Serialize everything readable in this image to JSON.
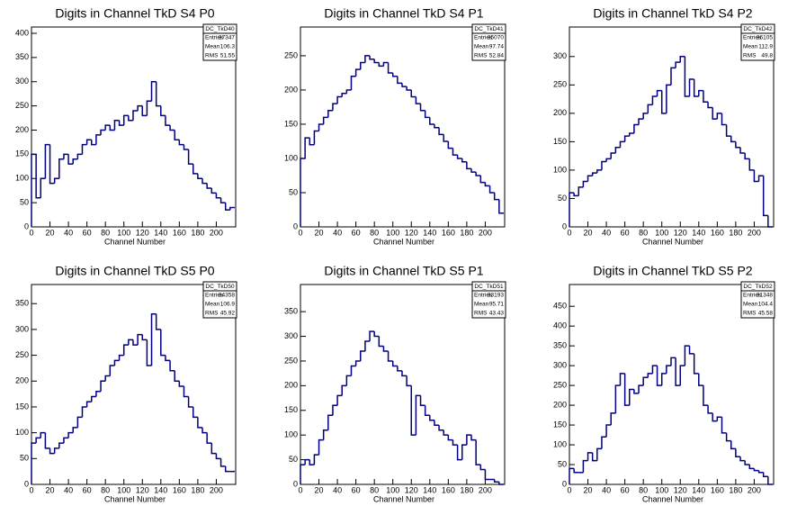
{
  "chart_data": [
    {
      "type": "histogram",
      "title": "Digits in Channel TkD S4 P0",
      "x_label": "Channel Number",
      "color": "#000080",
      "stats": {
        "name": "DC_TkD40",
        "rows": [
          {
            "label": "Entries",
            "value": 37347
          },
          {
            "label": "Mean",
            "value": 106.3
          },
          {
            "label": "RMS",
            "value": 51.55
          }
        ]
      },
      "bins": [
        0,
        5,
        10,
        15,
        20,
        25,
        30,
        35,
        40,
        45,
        50,
        55,
        60,
        65,
        70,
        75,
        80,
        85,
        90,
        95,
        100,
        105,
        110,
        115,
        120,
        125,
        130,
        135,
        140,
        145,
        150,
        155,
        160,
        165,
        170,
        175,
        180,
        185,
        190,
        195,
        200,
        205,
        210,
        215,
        220
      ],
      "values": [
        150,
        60,
        100,
        170,
        90,
        100,
        140,
        150,
        130,
        140,
        150,
        170,
        180,
        170,
        190,
        200,
        210,
        200,
        220,
        210,
        230,
        220,
        240,
        250,
        230,
        260,
        300,
        250,
        230,
        210,
        200,
        180,
        170,
        160,
        130,
        110,
        100,
        90,
        80,
        70,
        60,
        50,
        35,
        40
      ],
      "xlim": [
        0,
        221
      ],
      "ylim": [
        0,
        413
      ],
      "xticks": [
        0,
        20,
        40,
        60,
        80,
        100,
        120,
        140,
        160,
        180,
        200
      ],
      "yticks": [
        0,
        50,
        100,
        150,
        200,
        250,
        300,
        350,
        400
      ]
    },
    {
      "type": "histogram",
      "title": "Digits in Channel TkD S4 P1",
      "x_label": "Channel Number",
      "color": "#000080",
      "stats": {
        "name": "DC_TkD41",
        "rows": [
          {
            "label": "Entries",
            "value": 35070
          },
          {
            "label": "Mean",
            "value": 97.74
          },
          {
            "label": "RMS",
            "value": 52.84
          }
        ]
      },
      "bins": [
        0,
        5,
        10,
        15,
        20,
        25,
        30,
        35,
        40,
        45,
        50,
        55,
        60,
        65,
        70,
        75,
        80,
        85,
        90,
        95,
        100,
        105,
        110,
        115,
        120,
        125,
        130,
        135,
        140,
        145,
        150,
        155,
        160,
        165,
        170,
        175,
        180,
        185,
        190,
        195,
        200,
        205,
        210,
        215,
        220
      ],
      "values": [
        100,
        130,
        120,
        140,
        150,
        160,
        170,
        180,
        190,
        195,
        200,
        220,
        230,
        240,
        250,
        245,
        240,
        235,
        240,
        225,
        220,
        210,
        205,
        200,
        190,
        180,
        170,
        160,
        150,
        145,
        135,
        125,
        115,
        105,
        100,
        95,
        85,
        80,
        75,
        65,
        60,
        50,
        40,
        20
      ],
      "xlim": [
        0,
        221
      ],
      "ylim": [
        0,
        292
      ],
      "xticks": [
        0,
        20,
        40,
        60,
        80,
        100,
        120,
        140,
        160,
        180,
        200
      ],
      "yticks": [
        0,
        50,
        100,
        150,
        200,
        250
      ]
    },
    {
      "type": "histogram",
      "title": "Digits in Channel TkD S4 P2",
      "x_label": "Channel Number",
      "color": "#000080",
      "stats": {
        "name": "DC_TkD42",
        "rows": [
          {
            "label": "Entries",
            "value": 36105
          },
          {
            "label": "Mean",
            "value": 112.9
          },
          {
            "label": "RMS",
            "value": 49.8
          }
        ]
      },
      "bins": [
        0,
        5,
        10,
        15,
        20,
        25,
        30,
        35,
        40,
        45,
        50,
        55,
        60,
        65,
        70,
        75,
        80,
        85,
        90,
        95,
        100,
        105,
        110,
        115,
        120,
        125,
        130,
        135,
        140,
        145,
        150,
        155,
        160,
        165,
        170,
        175,
        180,
        185,
        190,
        195,
        200,
        205,
        210,
        215,
        220
      ],
      "values": [
        60,
        55,
        70,
        80,
        90,
        95,
        100,
        115,
        120,
        130,
        140,
        150,
        160,
        165,
        180,
        190,
        200,
        215,
        230,
        240,
        200,
        250,
        280,
        290,
        300,
        230,
        260,
        230,
        240,
        220,
        210,
        190,
        200,
        180,
        160,
        150,
        140,
        130,
        120,
        100,
        80,
        90,
        20,
        0
      ],
      "xlim": [
        0,
        221
      ],
      "ylim": [
        0,
        352
      ],
      "xticks": [
        0,
        20,
        40,
        60,
        80,
        100,
        120,
        140,
        160,
        180,
        200
      ],
      "yticks": [
        0,
        50,
        100,
        150,
        200,
        250,
        300
      ]
    },
    {
      "type": "histogram",
      "title": "Digits in Channel TkD S5 P0",
      "x_label": "Channel Number",
      "color": "#000080",
      "stats": {
        "name": "DC_TkD50",
        "rows": [
          {
            "label": "Entries",
            "value": 34358
          },
          {
            "label": "Mean",
            "value": 106.9
          },
          {
            "label": "RMS",
            "value": 45.92
          }
        ]
      },
      "bins": [
        0,
        5,
        10,
        15,
        20,
        25,
        30,
        35,
        40,
        45,
        50,
        55,
        60,
        65,
        70,
        75,
        80,
        85,
        90,
        95,
        100,
        105,
        110,
        115,
        120,
        125,
        130,
        135,
        140,
        145,
        150,
        155,
        160,
        165,
        170,
        175,
        180,
        185,
        190,
        195,
        200,
        205,
        210,
        215,
        220
      ],
      "values": [
        80,
        90,
        100,
        70,
        60,
        70,
        80,
        90,
        100,
        110,
        130,
        150,
        160,
        170,
        180,
        200,
        210,
        230,
        240,
        250,
        270,
        280,
        270,
        290,
        280,
        230,
        330,
        300,
        250,
        240,
        220,
        200,
        190,
        170,
        150,
        130,
        110,
        100,
        80,
        60,
        50,
        35,
        25,
        25
      ],
      "xlim": [
        0,
        221
      ],
      "ylim": [
        0,
        387
      ],
      "xticks": [
        0,
        20,
        40,
        60,
        80,
        100,
        120,
        140,
        160,
        180,
        200
      ],
      "yticks": [
        0,
        50,
        100,
        150,
        200,
        250,
        300,
        350
      ]
    },
    {
      "type": "histogram",
      "title": "Digits in Channel TkD S5 P1",
      "x_label": "Channel Number",
      "color": "#000080",
      "stats": {
        "name": "DC_TkD51",
        "rows": [
          {
            "label": "Entries",
            "value": 33193
          },
          {
            "label": "Mean",
            "value": 95.71
          },
          {
            "label": "RMS",
            "value": 43.43
          }
        ]
      },
      "bins": [
        0,
        5,
        10,
        15,
        20,
        25,
        30,
        35,
        40,
        45,
        50,
        55,
        60,
        65,
        70,
        75,
        80,
        85,
        90,
        95,
        100,
        105,
        110,
        115,
        120,
        125,
        130,
        135,
        140,
        145,
        150,
        155,
        160,
        165,
        170,
        175,
        180,
        185,
        190,
        195,
        200,
        205,
        210,
        215,
        220
      ],
      "values": [
        40,
        50,
        40,
        60,
        90,
        110,
        140,
        160,
        180,
        200,
        220,
        240,
        250,
        270,
        290,
        310,
        300,
        280,
        270,
        250,
        240,
        230,
        220,
        200,
        100,
        180,
        160,
        140,
        130,
        120,
        110,
        100,
        90,
        80,
        50,
        80,
        100,
        90,
        40,
        30,
        10,
        10,
        5,
        0
      ],
      "xlim": [
        0,
        221
      ],
      "ylim": [
        0,
        405
      ],
      "xticks": [
        0,
        20,
        40,
        60,
        80,
        100,
        120,
        140,
        160,
        180,
        200
      ],
      "yticks": [
        0,
        50,
        100,
        150,
        200,
        250,
        300,
        350
      ]
    },
    {
      "type": "histogram",
      "title": "Digits in Channel TkD S5 P2",
      "x_label": "Channel Number",
      "color": "#000080",
      "stats": {
        "name": "DC_TkD52",
        "rows": [
          {
            "label": "Entries",
            "value": 31348
          },
          {
            "label": "Mean",
            "value": 104.4
          },
          {
            "label": "RMS",
            "value": 45.58
          }
        ]
      },
      "bins": [
        0,
        5,
        10,
        15,
        20,
        25,
        30,
        35,
        40,
        45,
        50,
        55,
        60,
        65,
        70,
        75,
        80,
        85,
        90,
        95,
        100,
        105,
        110,
        115,
        120,
        125,
        130,
        135,
        140,
        145,
        150,
        155,
        160,
        165,
        170,
        175,
        180,
        185,
        190,
        195,
        200,
        205,
        210,
        215,
        220
      ],
      "values": [
        40,
        30,
        30,
        60,
        80,
        60,
        90,
        120,
        150,
        180,
        250,
        280,
        200,
        240,
        230,
        250,
        270,
        280,
        300,
        250,
        280,
        300,
        320,
        250,
        300,
        350,
        330,
        280,
        250,
        200,
        180,
        160,
        170,
        130,
        110,
        90,
        70,
        60,
        50,
        40,
        35,
        30,
        20,
        0
      ],
      "xlim": [
        0,
        221
      ],
      "ylim": [
        0,
        505
      ],
      "xticks": [
        0,
        20,
        40,
        60,
        80,
        100,
        120,
        140,
        160,
        180,
        200
      ],
      "yticks": [
        0,
        50,
        100,
        150,
        200,
        250,
        300,
        350,
        400,
        450
      ]
    }
  ]
}
